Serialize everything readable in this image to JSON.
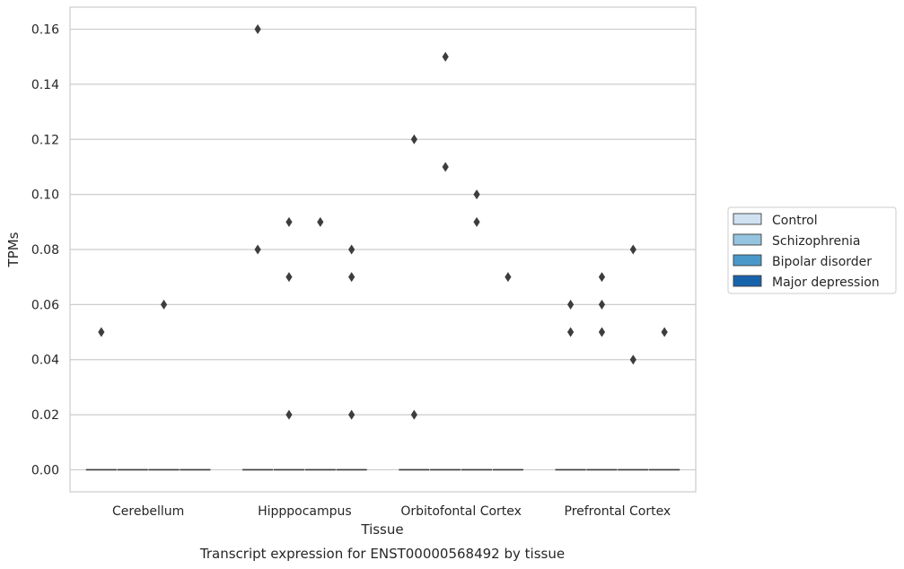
{
  "chart_data": {
    "type": "box",
    "xlabel": "Tissue",
    "ylabel": "TPMs",
    "caption": "Transcript expression for ENST00000568492 by tissue",
    "categories": [
      "Cerebellum",
      "Hipppocampus",
      "Orbitofontal Cortex",
      "Prefrontal Cortex"
    ],
    "ylim": [
      -0.008,
      0.168
    ],
    "yticks": [
      "0.00",
      "0.02",
      "0.04",
      "0.06",
      "0.08",
      "0.10",
      "0.12",
      "0.14",
      "0.16"
    ],
    "grid": true,
    "legend_position": "right",
    "series": [
      {
        "name": "Control",
        "color": "#d0e1f2",
        "medians": [
          0,
          0,
          0,
          0
        ],
        "outliers": [
          [
            0.05
          ],
          [
            0.08,
            0.16
          ],
          [
            0.02,
            0.12
          ],
          [
            0.05,
            0.06
          ]
        ]
      },
      {
        "name": "Schizophrenia",
        "color": "#94c4df",
        "medians": [
          0,
          0,
          0,
          0
        ],
        "outliers": [
          [],
          [
            0.02,
            0.07,
            0.09
          ],
          [
            0.11,
            0.15
          ],
          [
            0.05,
            0.06,
            0.07
          ]
        ]
      },
      {
        "name": "Bipolar disorder",
        "color": "#4a98c9",
        "medians": [
          0,
          0,
          0,
          0
        ],
        "outliers": [
          [
            0.06
          ],
          [
            0.09
          ],
          [
            0.09,
            0.1
          ],
          [
            0.04,
            0.08
          ]
        ]
      },
      {
        "name": "Major depression",
        "color": "#1764ab",
        "medians": [
          0,
          0,
          0,
          0
        ],
        "outliers": [
          [],
          [
            0.02,
            0.07,
            0.08
          ],
          [
            0.07
          ],
          [
            0.05
          ]
        ]
      }
    ]
  }
}
